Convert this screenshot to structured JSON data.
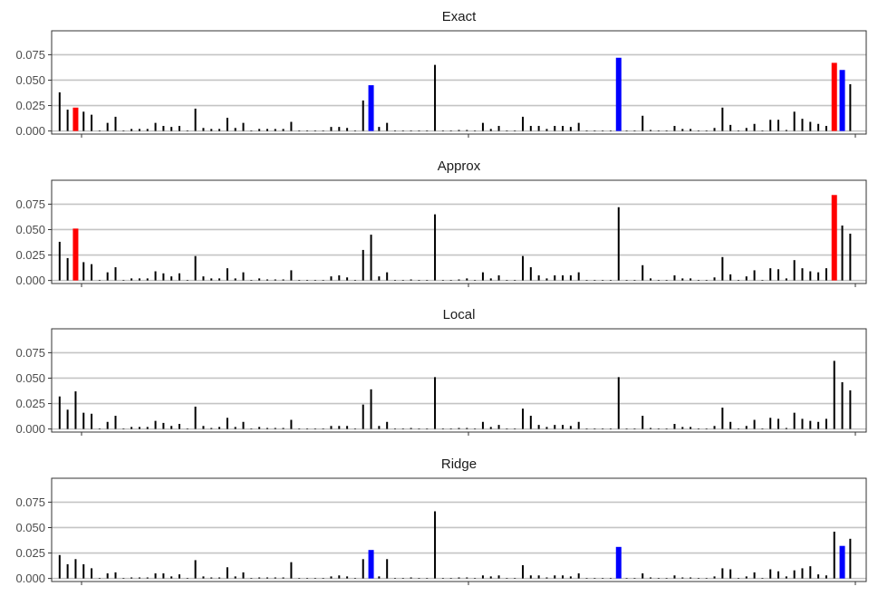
{
  "chart_data": {
    "type": "bar",
    "layout": "4 stacked panels sharing one x axis",
    "x_tick_labels_shown": false,
    "grid": "horizontal major gridlines",
    "ylim": [
      -0.003,
      0.0985
    ],
    "yticks": [
      "0.000",
      "0.025",
      "0.050",
      "0.075"
    ],
    "xlim": [
      -1,
      101
    ],
    "colors": {
      "default": "#000000",
      "highlight_red": "#ff0000",
      "highlight_blue": "#0000ff",
      "grid": "#c4c4c4",
      "frame": "#333333"
    },
    "panels": [
      {
        "title": "Exact",
        "values": [
          0.038,
          0.021,
          0.023,
          0.019,
          0.016,
          0.0,
          0.008,
          0.014,
          0.0,
          0.002,
          0.002,
          0.002,
          0.008,
          0.005,
          0.004,
          0.005,
          0.0,
          0.022,
          0.003,
          0.002,
          0.002,
          0.013,
          0.003,
          0.008,
          0.0,
          0.002,
          0.002,
          0.002,
          0.002,
          0.009,
          0.0,
          0.0,
          0.0,
          0.0,
          0.004,
          0.004,
          0.003,
          0.0,
          0.03,
          0.045,
          0.004,
          0.008,
          0.0,
          0.0,
          0.0,
          0.0,
          0.0,
          0.065,
          0.0,
          0.0,
          0.001,
          0.001,
          0.0,
          0.008,
          0.002,
          0.005,
          0.0,
          0.0,
          0.014,
          0.005,
          0.005,
          0.002,
          0.005,
          0.005,
          0.004,
          0.008,
          0.0,
          0.0,
          0.0,
          0.0,
          0.072,
          0.0,
          0.0,
          0.015,
          0.001,
          0.0,
          0.0,
          0.005,
          0.002,
          0.002,
          0.0,
          0.0,
          0.003,
          0.023,
          0.006,
          0.0,
          0.003,
          0.007,
          0.0,
          0.011,
          0.011,
          0.001,
          0.019,
          0.012,
          0.009,
          0.007,
          0.005,
          0.067,
          0.06,
          0.046
        ],
        "red_bars": [
          2,
          97
        ],
        "blue_bars": [
          39,
          70,
          98
        ]
      },
      {
        "title": "Approx",
        "values": [
          0.038,
          0.022,
          0.051,
          0.018,
          0.016,
          0.0,
          0.008,
          0.013,
          0.0,
          0.002,
          0.002,
          0.002,
          0.009,
          0.007,
          0.004,
          0.007,
          0.0,
          0.024,
          0.004,
          0.002,
          0.002,
          0.012,
          0.002,
          0.008,
          0.0,
          0.002,
          0.001,
          0.001,
          0.001,
          0.01,
          0.0,
          0.0,
          0.0,
          0.0,
          0.004,
          0.005,
          0.003,
          0.0,
          0.03,
          0.045,
          0.004,
          0.008,
          0.0,
          0.0,
          0.001,
          0.0,
          0.0,
          0.065,
          0.0,
          0.0,
          0.001,
          0.002,
          0.0,
          0.008,
          0.002,
          0.005,
          0.0,
          0.0,
          0.024,
          0.013,
          0.005,
          0.002,
          0.005,
          0.005,
          0.005,
          0.008,
          0.0,
          0.0,
          0.0,
          0.0,
          0.072,
          0.0,
          0.0,
          0.015,
          0.002,
          0.0,
          0.0,
          0.005,
          0.002,
          0.002,
          0.0,
          0.0,
          0.003,
          0.023,
          0.006,
          0.0,
          0.004,
          0.01,
          0.0,
          0.012,
          0.011,
          0.002,
          0.02,
          0.012,
          0.009,
          0.008,
          0.012,
          0.084,
          0.054,
          0.046
        ],
        "red_bars": [
          2,
          97
        ],
        "blue_bars": []
      },
      {
        "title": "Local",
        "values": [
          0.032,
          0.019,
          0.037,
          0.016,
          0.015,
          0.0,
          0.007,
          0.013,
          0.0,
          0.002,
          0.002,
          0.002,
          0.008,
          0.006,
          0.003,
          0.005,
          0.0,
          0.022,
          0.003,
          0.001,
          0.002,
          0.011,
          0.002,
          0.007,
          0.0,
          0.002,
          0.001,
          0.001,
          0.001,
          0.009,
          0.0,
          0.0,
          0.0,
          0.0,
          0.003,
          0.003,
          0.003,
          0.0,
          0.024,
          0.039,
          0.003,
          0.007,
          0.0,
          0.0,
          0.001,
          0.0,
          0.0,
          0.051,
          0.0,
          0.0,
          0.001,
          0.001,
          0.0,
          0.007,
          0.002,
          0.004,
          0.0,
          0.0,
          0.02,
          0.013,
          0.004,
          0.002,
          0.004,
          0.004,
          0.003,
          0.007,
          0.0,
          0.0,
          0.0,
          0.0,
          0.051,
          0.0,
          0.0,
          0.013,
          0.001,
          0.0,
          0.0,
          0.005,
          0.002,
          0.002,
          0.0,
          0.0,
          0.003,
          0.021,
          0.007,
          0.0,
          0.003,
          0.009,
          0.0,
          0.011,
          0.01,
          0.001,
          0.016,
          0.01,
          0.008,
          0.007,
          0.01,
          0.067,
          0.046,
          0.038
        ],
        "red_bars": [],
        "blue_bars": []
      },
      {
        "title": "Ridge",
        "values": [
          0.023,
          0.014,
          0.019,
          0.014,
          0.01,
          0.0,
          0.005,
          0.006,
          0.0,
          0.001,
          0.001,
          0.001,
          0.005,
          0.005,
          0.002,
          0.004,
          0.0,
          0.018,
          0.002,
          0.001,
          0.001,
          0.011,
          0.002,
          0.006,
          0.0,
          0.001,
          0.001,
          0.001,
          0.001,
          0.016,
          0.0,
          0.0,
          0.0,
          0.0,
          0.002,
          0.003,
          0.002,
          0.0,
          0.019,
          0.028,
          0.002,
          0.019,
          0.0,
          0.0,
          0.001,
          0.0,
          0.0,
          0.066,
          0.0,
          0.0,
          0.001,
          0.001,
          0.0,
          0.003,
          0.002,
          0.003,
          0.0,
          0.0,
          0.013,
          0.003,
          0.003,
          0.001,
          0.003,
          0.003,
          0.002,
          0.005,
          0.0,
          0.0,
          0.0,
          0.0,
          0.031,
          0.0,
          0.0,
          0.005,
          0.001,
          0.0,
          0.0,
          0.003,
          0.001,
          0.001,
          0.0,
          0.0,
          0.002,
          0.01,
          0.009,
          0.0,
          0.002,
          0.006,
          0.0,
          0.009,
          0.007,
          0.002,
          0.008,
          0.01,
          0.012,
          0.004,
          0.003,
          0.046,
          0.032,
          0.039
        ],
        "red_bars": [],
        "blue_bars": [
          39,
          70,
          98
        ]
      }
    ]
  }
}
